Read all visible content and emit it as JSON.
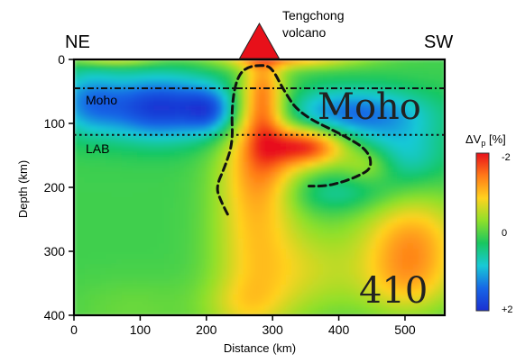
{
  "chart_data": {
    "type": "heatmap",
    "title": "",
    "xlabel": "Distance (km)",
    "ylabel": "Depth (km)",
    "xlim": [
      0,
      560
    ],
    "ylim": [
      400,
      0
    ],
    "x_ticks": [
      0,
      100,
      200,
      300,
      400,
      500
    ],
    "y_ticks": [
      0,
      100,
      200,
      300,
      400
    ],
    "direction_left": "NE",
    "direction_right": "SW",
    "volcano": {
      "label_line1": "Tengchong",
      "label_line2": "volcano",
      "distance_km": 280
    },
    "moho": {
      "label": "Moho",
      "depth_km": 45
    },
    "lab": {
      "label": "LAB",
      "depth_km": 118
    },
    "overlay_labels": {
      "moho_big": "Moho",
      "d410": "410"
    },
    "colorbar": {
      "label_prefix": "ΔV",
      "label_sub": "p",
      "label_suffix": " [%]",
      "min_label": "-2",
      "mid_label": "0",
      "max_label": "+2",
      "colors": [
        "#e8101a",
        "#ff7a18",
        "#ffd21f",
        "#8fe02a",
        "#19c760",
        "#18c9d6",
        "#1766e6",
        "#1a2fd1"
      ]
    },
    "background_anomaly": 0.1,
    "anomalies": [
      {
        "x": 130,
        "y": 75,
        "sx": 65,
        "sy": 35,
        "value": 1.8
      },
      {
        "x": 205,
        "y": 80,
        "sx": 25,
        "sy": 25,
        "value": 0.9
      },
      {
        "x": 20,
        "y": 65,
        "sx": 35,
        "sy": 35,
        "value": 0.9
      },
      {
        "x": 420,
        "y": 85,
        "sx": 80,
        "sy": 28,
        "value": 1.3
      },
      {
        "x": 500,
        "y": 150,
        "sx": 45,
        "sy": 35,
        "value": 0.7
      },
      {
        "x": 395,
        "y": 210,
        "sx": 55,
        "sy": 22,
        "value": 0.5
      },
      {
        "x": 285,
        "y": 60,
        "sx": 22,
        "sy": 55,
        "value": -1.3
      },
      {
        "x": 285,
        "y": 150,
        "sx": 40,
        "sy": 65,
        "value": -1.0
      },
      {
        "x": 270,
        "y": 280,
        "sx": 45,
        "sy": 110,
        "value": -0.8
      },
      {
        "x": 355,
        "y": 135,
        "sx": 40,
        "sy": 22,
        "value": -1.8
      },
      {
        "x": 445,
        "y": 165,
        "sx": 28,
        "sy": 20,
        "value": -0.6
      },
      {
        "x": 350,
        "y": 330,
        "sx": 60,
        "sy": 50,
        "value": -0.6
      },
      {
        "x": 510,
        "y": 290,
        "sx": 55,
        "sy": 55,
        "value": -1.3
      },
      {
        "x": 500,
        "y": 355,
        "sx": 50,
        "sy": 35,
        "value": -0.5
      },
      {
        "x": 255,
        "y": 385,
        "sx": 45,
        "sy": 30,
        "value": -0.4
      },
      {
        "x": 90,
        "y": 390,
        "sx": 70,
        "sy": 35,
        "value": -0.2
      },
      {
        "x": 320,
        "y": 0,
        "sx": 80,
        "sy": 10,
        "value": -1.1
      },
      {
        "x": 60,
        "y": 0,
        "sx": 50,
        "sy": 8,
        "value": -0.8
      }
    ],
    "plume_outline": [
      [
        232,
        242
      ],
      [
        220,
        218
      ],
      [
        215,
        198
      ],
      [
        228,
        168
      ],
      [
        240,
        130
      ],
      [
        238,
        80
      ],
      [
        244,
        35
      ],
      [
        258,
        12
      ],
      [
        290,
        8
      ],
      [
        302,
        18
      ],
      [
        315,
        45
      ],
      [
        340,
        85
      ],
      [
        410,
        120
      ],
      [
        445,
        143
      ],
      [
        450,
        170
      ],
      [
        430,
        182
      ],
      [
        405,
        192
      ],
      [
        380,
        198
      ],
      [
        355,
        198
      ]
    ]
  }
}
